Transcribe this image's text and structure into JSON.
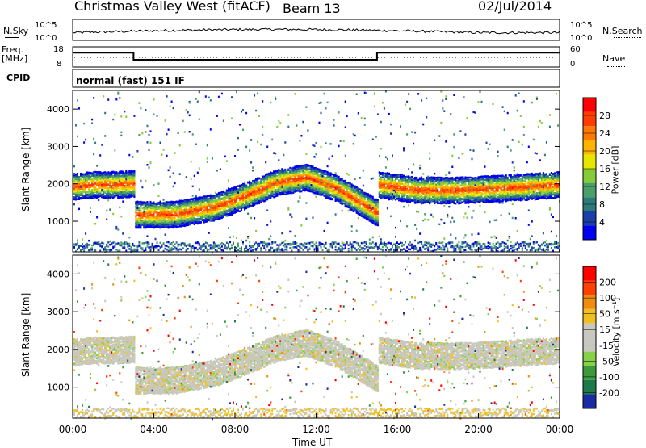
{
  "header": {
    "station": "Christmas Valley West (fitACF)",
    "beam": "Beam 13",
    "date": "02/Jul/2014"
  },
  "noise_panel": {
    "left_label": "N.Sky",
    "right_label": "N.Search",
    "left_ticks": [
      "10^5",
      "10^0"
    ],
    "right_ticks": [
      "10^5",
      "10^0"
    ]
  },
  "freq_panel": {
    "left_label": "Freq. [MHz]",
    "left_ticks": [
      "18",
      "8"
    ],
    "right_label": "Nave",
    "right_ticks": [
      "60",
      "0"
    ],
    "freq_steps": [
      {
        "t": 0,
        "mhz": 15.5
      },
      {
        "t": 3.0,
        "mhz": 15.5
      },
      {
        "t": 3.0,
        "mhz": 11.3
      },
      {
        "t": 15.0,
        "mhz": 11.3
      },
      {
        "t": 15.0,
        "mhz": 15.5
      },
      {
        "t": 24,
        "mhz": 15.5
      }
    ]
  },
  "cpid": {
    "label": "CPID",
    "mode": "normal (fast) 151 IF"
  },
  "chart_data": [
    {
      "type": "heatmap",
      "panel": "power",
      "title": "",
      "xlabel": "",
      "ylabel": "Slant Range [km]",
      "ylim": [
        180,
        4500
      ],
      "yticks": [
        "1000",
        "2000",
        "3000",
        "4000"
      ],
      "colorbar_label": "Power [dB]",
      "colorbar_ticks": [
        "4",
        "8",
        "12",
        "16",
        "20",
        "24",
        "28"
      ],
      "colorbar_colors": [
        "#0000ee",
        "#1a40a8",
        "#2e7a7a",
        "#4ba06a",
        "#86cc3a",
        "#e6e600",
        "#ffb400",
        "#ff7800",
        "#ff3c00",
        "#ff0000"
      ],
      "echo_band_center_km": [
        {
          "t": 0.0,
          "r": 1950
        },
        {
          "t": 1.0,
          "r": 2000
        },
        {
          "t": 2.0,
          "r": 2000
        },
        {
          "t": 3.0,
          "r": 2020
        },
        {
          "t": 3.01,
          "r": 1200
        },
        {
          "t": 5.0,
          "r": 1200
        },
        {
          "t": 7.0,
          "r": 1400
        },
        {
          "t": 8.5,
          "r": 1700
        },
        {
          "t": 10.0,
          "r": 2050
        },
        {
          "t": 11.5,
          "r": 2200
        },
        {
          "t": 13.0,
          "r": 1900
        },
        {
          "t": 15.0,
          "r": 1250
        },
        {
          "t": 15.01,
          "r": 2000
        },
        {
          "t": 17.0,
          "r": 1850
        },
        {
          "t": 19.0,
          "r": 1850
        },
        {
          "t": 21.0,
          "r": 1900
        },
        {
          "t": 24.0,
          "r": 2000
        }
      ]
    },
    {
      "type": "heatmap",
      "panel": "velocity",
      "title": "",
      "xlabel": "Time UT",
      "ylabel": "Slant Range [km]",
      "ylim": [
        180,
        4500
      ],
      "yticks": [
        "1000",
        "2000",
        "3000",
        "4000"
      ],
      "xticks": [
        "00:00",
        "04:00",
        "08:00",
        "12:00",
        "16:00",
        "20:00",
        "00:00"
      ],
      "xlim": [
        0,
        24
      ],
      "colorbar_label": "Velocity [m s⁻¹]",
      "colorbar_ticks": [
        "200",
        "100",
        "50",
        "15",
        "-15",
        "-50",
        "-100",
        "-200"
      ],
      "colorbar_colors": [
        "#1a2aa0",
        "#1e7a4a",
        "#3c9a3c",
        "#86d04a",
        "#c8c8c0",
        "#c8c8c0",
        "#f0c020",
        "#f08c10",
        "#ff4000",
        "#ff0000"
      ]
    }
  ]
}
